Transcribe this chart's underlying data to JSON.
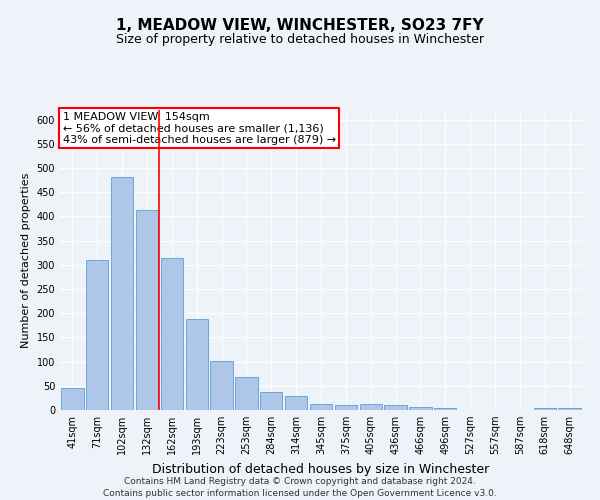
{
  "title": "1, MEADOW VIEW, WINCHESTER, SO23 7FY",
  "subtitle": "Size of property relative to detached houses in Winchester",
  "xlabel": "Distribution of detached houses by size in Winchester",
  "ylabel": "Number of detached properties",
  "categories": [
    "41sqm",
    "71sqm",
    "102sqm",
    "132sqm",
    "162sqm",
    "193sqm",
    "223sqm",
    "253sqm",
    "284sqm",
    "314sqm",
    "345sqm",
    "375sqm",
    "405sqm",
    "436sqm",
    "466sqm",
    "496sqm",
    "527sqm",
    "557sqm",
    "587sqm",
    "618sqm",
    "648sqm"
  ],
  "values": [
    46,
    311,
    481,
    414,
    314,
    188,
    102,
    68,
    37,
    29,
    13,
    11,
    13,
    11,
    7,
    4,
    1,
    0,
    0,
    4,
    4
  ],
  "bar_color": "#aec6e8",
  "bar_edge_color": "#5a9fd4",
  "red_line_index": 3,
  "annotation_text": "1 MEADOW VIEW: 154sqm\n← 56% of detached houses are smaller (1,136)\n43% of semi-detached houses are larger (879) →",
  "annotation_box_color": "white",
  "annotation_box_edge_color": "red",
  "ylim": [
    0,
    620
  ],
  "yticks": [
    0,
    50,
    100,
    150,
    200,
    250,
    300,
    350,
    400,
    450,
    500,
    550,
    600
  ],
  "footer_line1": "Contains HM Land Registry data © Crown copyright and database right 2024.",
  "footer_line2": "Contains public sector information licensed under the Open Government Licence v3.0.",
  "background_color": "#eef2f9",
  "grid_color": "white",
  "title_fontsize": 11,
  "subtitle_fontsize": 9,
  "xlabel_fontsize": 9,
  "ylabel_fontsize": 8,
  "tick_fontsize": 7,
  "annotation_fontsize": 8,
  "footer_fontsize": 6.5
}
